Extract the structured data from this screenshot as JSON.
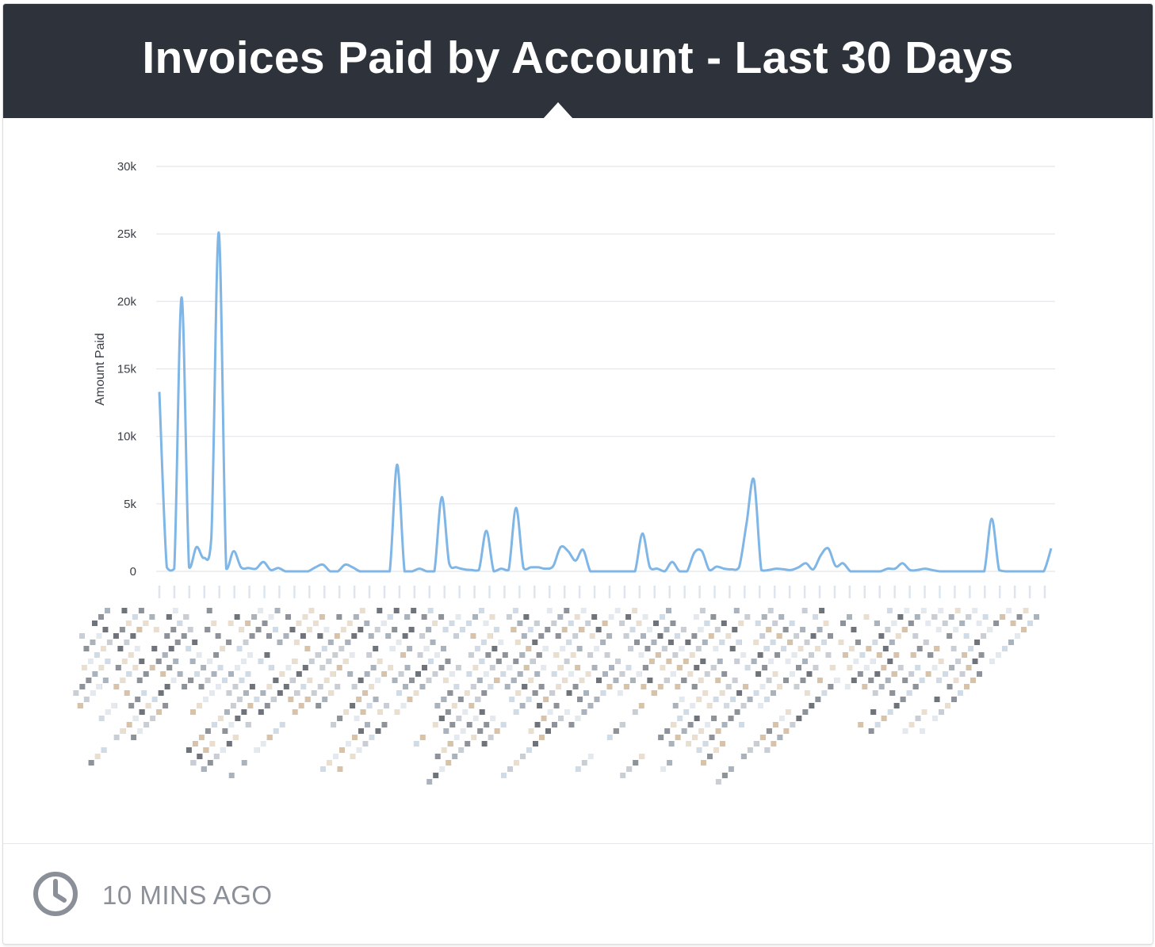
{
  "card": {
    "title": "Invoices Paid by Account - Last 30 Days",
    "updated": "10 MINS AGO",
    "footer_icon": "clock-icon"
  },
  "colors": {
    "header_bg": "#2d323b",
    "line": "#7fb6e6",
    "grid": "#e3e5e8",
    "footer_text": "#8a8f98"
  },
  "chart_data": {
    "type": "line",
    "title": "",
    "xlabel": "",
    "ylabel": "Amount Paid",
    "ylim": [
      0,
      30000
    ],
    "y_ticks": [
      0,
      5000,
      10000,
      15000,
      20000,
      25000,
      30000
    ],
    "y_tick_labels": [
      "0",
      "5k",
      "10k",
      "15k",
      "20k",
      "25k",
      "30k"
    ],
    "grid": true,
    "legend": "none",
    "x_labels_obscured": true,
    "series": [
      {
        "values": [
          13300,
          300,
          200,
          20300,
          300,
          1800,
          1000,
          2500,
          25100,
          200,
          1500,
          300,
          250,
          200,
          700,
          100,
          250,
          0,
          0,
          0,
          0,
          300,
          500,
          0,
          0,
          500,
          300,
          0,
          0,
          0,
          0,
          0,
          7900,
          0,
          0,
          200,
          0,
          0,
          5500,
          600,
          300,
          150,
          100,
          100,
          3000,
          0,
          200,
          100,
          4700,
          250,
          300,
          300,
          200,
          400,
          1800,
          1500,
          800,
          1600,
          0,
          0,
          0,
          0,
          0,
          0,
          0,
          2800,
          300,
          200,
          0,
          700,
          0,
          0,
          1400,
          1500,
          100,
          350,
          200,
          150,
          300,
          3500,
          6800,
          100,
          100,
          200,
          150,
          100,
          300,
          600,
          150,
          1200,
          1700,
          400,
          600,
          0,
          0,
          0,
          0,
          0,
          200,
          200,
          600,
          100,
          100,
          200,
          100,
          0,
          0,
          0,
          0,
          0,
          0,
          0,
          3900,
          100,
          0,
          0,
          0,
          0,
          0,
          0,
          1700
        ]
      }
    ]
  }
}
